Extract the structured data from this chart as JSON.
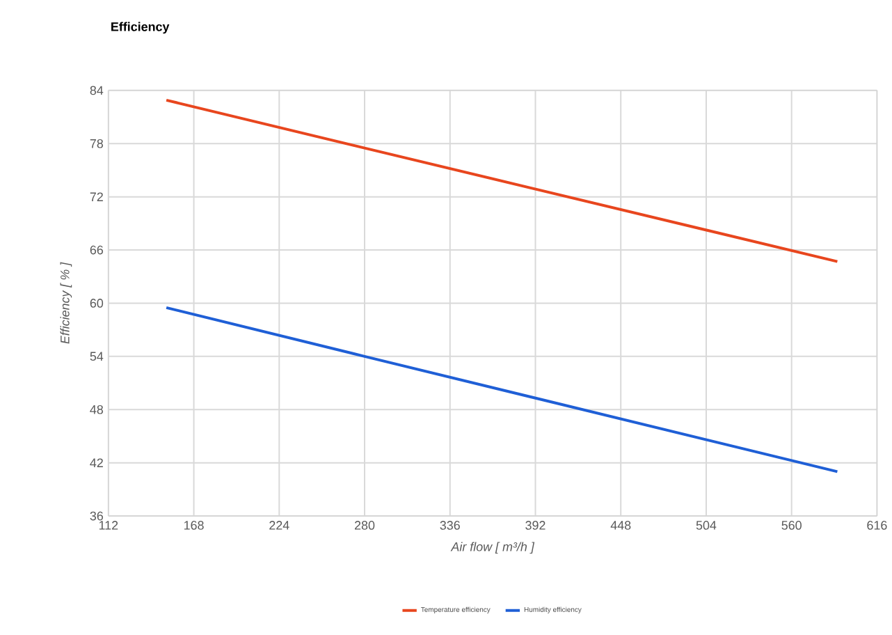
{
  "chart_data": {
    "type": "line",
    "title": "Efficiency",
    "xlabel": "Air flow [ m³/h ]",
    "ylabel": "Efficiency [ % ]",
    "xlim": [
      112,
      616
    ],
    "xticks": [
      112,
      168,
      224,
      280,
      336,
      392,
      448,
      504,
      560,
      616
    ],
    "ylim": [
      36,
      84
    ],
    "yticks": [
      36,
      42,
      48,
      54,
      60,
      66,
      72,
      78,
      84
    ],
    "grid": true,
    "legend": "bottom",
    "marker": "none",
    "line_style": "solid",
    "series": [
      {
        "name": "Temperature efficiency",
        "color": "#e8461e",
        "x": [
          150,
          280,
          590
        ],
        "values": [
          82.9,
          77.5,
          64.7
        ]
      },
      {
        "name": "Humidity efficiency",
        "color": "#1f5fd6",
        "x": [
          150,
          280,
          590
        ],
        "values": [
          59.5,
          54.0,
          41.0
        ]
      }
    ]
  }
}
